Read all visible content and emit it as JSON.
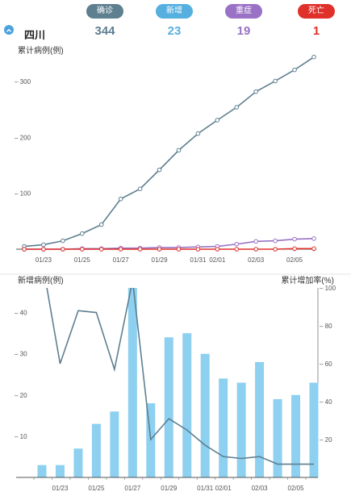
{
  "header": {
    "tags": [
      {
        "label": "确诊",
        "value": "344",
        "color": "#5e7f90",
        "tag_name": "confirmed"
      },
      {
        "label": "新增",
        "value": "23",
        "color": "#55b0e0",
        "tag_name": "new"
      },
      {
        "label": "重症",
        "value": "19",
        "color": "#9a72c5",
        "tag_name": "severe"
      },
      {
        "label": "死亡",
        "value": "1",
        "color": "#e0302a",
        "tag_name": "death"
      }
    ],
    "region": "四川",
    "collapse_icon": "chevron-up-icon"
  },
  "chart_data": [
    {
      "type": "line",
      "title": "累计病例(例)",
      "x": [
        "01/22",
        "01/23",
        "01/24",
        "01/25",
        "01/26",
        "01/27",
        "01/28",
        "01/29",
        "01/30",
        "01/31",
        "02/01",
        "02/02",
        "02/03",
        "02/04",
        "02/05",
        "02/06"
      ],
      "x_tick_labels": [
        "01/23",
        "01/25",
        "01/27",
        "01/29",
        "01/31",
        "02/01",
        "02/03",
        "02/05"
      ],
      "ylim": [
        0,
        345
      ],
      "y_ticks": [
        100,
        200,
        300
      ],
      "series": [
        {
          "color": "#5e7f90",
          "values": [
            5,
            8,
            15,
            28,
            44,
            90,
            108,
            142,
            177,
            207,
            231,
            254,
            282,
            301,
            321,
            344
          ]
        },
        {
          "color": "#9a72c5",
          "values": [
            0,
            0,
            0,
            1,
            1,
            2,
            2,
            3,
            3,
            4,
            5,
            9,
            14,
            15,
            18,
            19
          ]
        },
        {
          "color": "#e0302a",
          "values": [
            0,
            0,
            0,
            0,
            0,
            0,
            0,
            0,
            0,
            0,
            0,
            0,
            0,
            0,
            1,
            1
          ]
        }
      ]
    },
    {
      "type": "bar",
      "ylabel": "新增病例(例)",
      "y2label": "累计增加率(%)",
      "x": [
        "01/22",
        "01/23",
        "01/24",
        "01/25",
        "01/26",
        "01/27",
        "01/28",
        "01/29",
        "01/30",
        "01/31",
        "02/01",
        "02/02",
        "02/03",
        "02/04",
        "02/05",
        "02/06"
      ],
      "x_tick_labels": [
        "01/23",
        "01/25",
        "01/27",
        "01/29",
        "01/31",
        "02/01",
        "02/03",
        "02/05"
      ],
      "ylim": [
        0,
        46
      ],
      "y_ticks": [
        10,
        20,
        30,
        40
      ],
      "y2lim": [
        0,
        100
      ],
      "y2_ticks": [
        20,
        40,
        60,
        80,
        100
      ],
      "bar_color": "#8dd0f0",
      "line_color": "#5e7f90",
      "values": [
        3,
        3,
        7,
        13,
        16,
        46,
        18,
        34,
        35,
        30,
        24,
        23,
        28,
        19,
        20,
        23
      ],
      "rate_values": [
        115,
        60,
        88,
        87,
        57,
        104,
        20,
        31,
        25,
        17,
        11,
        10,
        11,
        7,
        7,
        7
      ]
    }
  ]
}
